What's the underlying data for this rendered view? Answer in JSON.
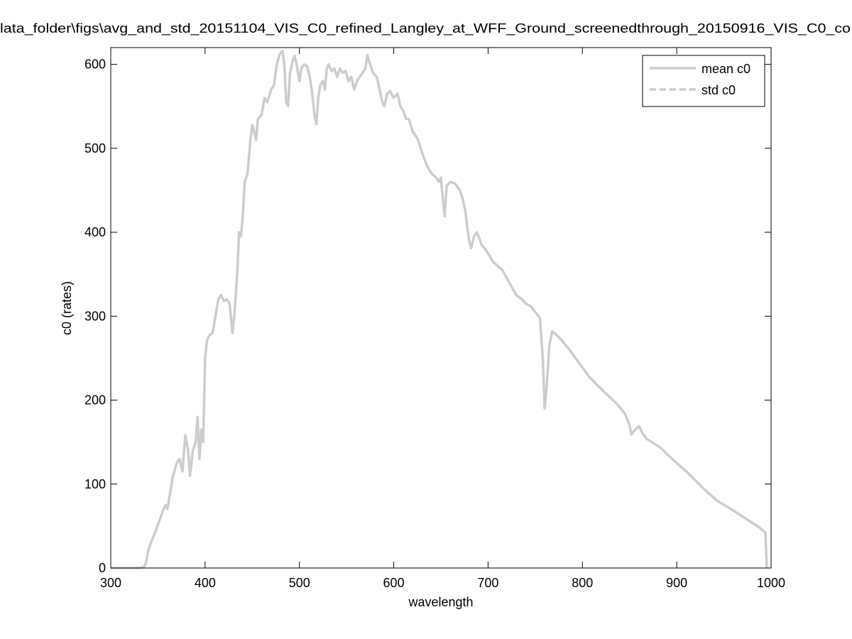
{
  "chart_data": {
    "type": "line",
    "title": "lata_folder\\figs\\avg_and_std_20151104_VIS_C0_refined_Langley_at_WFF_Ground_screenedthrough_20150916_VIS_C0_co",
    "x_label": "wavelength",
    "y_label": "c0 (rates)",
    "xlim": [
      300,
      1000
    ],
    "ylim": [
      0,
      620
    ],
    "xticks": [
      300,
      400,
      500,
      600,
      700,
      800,
      900,
      1000
    ],
    "yticks": [
      0,
      100,
      200,
      300,
      400,
      500,
      600
    ],
    "grid": false,
    "legend": "top-right",
    "x": [
      300,
      330,
      335,
      337,
      340,
      344,
      348,
      352,
      356,
      358,
      360,
      363,
      366,
      370,
      373,
      376,
      379,
      382,
      384,
      387,
      390,
      392,
      394,
      396,
      398,
      400,
      402,
      405,
      408,
      411,
      414,
      417,
      420,
      423,
      426,
      429,
      431,
      434,
      436,
      438,
      440,
      442,
      445,
      448,
      450,
      452,
      454,
      456,
      460,
      463,
      466,
      470,
      473,
      476,
      479,
      482,
      484,
      486,
      488,
      490,
      493,
      495,
      497,
      500,
      502,
      505,
      508,
      511,
      513,
      516,
      518,
      520,
      522,
      525,
      527,
      529,
      531,
      534,
      537,
      540,
      543,
      546,
      549,
      552,
      555,
      558,
      561,
      564,
      567,
      570,
      572,
      575,
      578,
      582,
      585,
      588,
      590,
      593,
      596,
      600,
      604,
      607,
      610,
      613,
      616,
      620,
      625,
      630,
      635,
      640,
      645,
      648,
      650,
      652,
      654,
      656,
      660,
      665,
      670,
      673,
      676,
      678,
      680,
      682,
      685,
      688,
      690,
      693,
      697,
      700,
      705,
      710,
      715,
      720,
      725,
      730,
      735,
      740,
      745,
      750,
      755,
      758,
      760,
      762,
      765,
      768,
      775,
      785,
      796,
      807,
      822,
      837,
      845,
      850,
      852,
      856,
      860,
      864,
      868,
      882,
      898,
      913,
      928,
      943,
      958,
      973,
      988,
      994,
      995.5
    ],
    "series": [
      {
        "name": "mean c0",
        "color": "#cccccc",
        "dash": "solid",
        "values": [
          0,
          0,
          1,
          5,
          22,
          34,
          45,
          58,
          70,
          75,
          70,
          90,
          110,
          125,
          130,
          115,
          158,
          140,
          110,
          140,
          150,
          180,
          130,
          165,
          150,
          250,
          271,
          278,
          280,
          300,
          320,
          325,
          318,
          320,
          315,
          280,
          300,
          350,
          400,
          395,
          420,
          460,
          470,
          510,
          528,
          520,
          510,
          535,
          540,
          560,
          555,
          570,
          575,
          600,
          612,
          616,
          600,
          555,
          550,
          590,
          605,
          610,
          600,
          580,
          595,
          600,
          598,
          585,
          570,
          540,
          529,
          560,
          575,
          580,
          570,
          595,
          600,
          592,
          595,
          585,
          595,
          590,
          592,
          580,
          585,
          570,
          580,
          585,
          590,
          595,
          611,
          600,
          590,
          585,
          570,
          555,
          550,
          565,
          568,
          560,
          565,
          550,
          545,
          535,
          535,
          520,
          512,
          495,
          480,
          470,
          465,
          460,
          465,
          440,
          419,
          455,
          460,
          458,
          450,
          440,
          425,
          405,
          390,
          381,
          395,
          400,
          395,
          385,
          380,
          375,
          365,
          360,
          355,
          345,
          335,
          325,
          321,
          315,
          312,
          305,
          298,
          250,
          190,
          215,
          265,
          282,
          275,
          262,
          245,
          228,
          211,
          195,
          184,
          170,
          159,
          165,
          169,
          160,
          154,
          144,
          127,
          112,
          95,
          80,
          70,
          59,
          48,
          42,
          0
        ]
      },
      {
        "name": "std c0",
        "color": "#cccccc",
        "dash": "dashed",
        "values": [
          null,
          null,
          null,
          null,
          null,
          null,
          null,
          null,
          null,
          null,
          null,
          null,
          null,
          null,
          null,
          null,
          null,
          null,
          null,
          null,
          null,
          null,
          null,
          null,
          null,
          null,
          null,
          null,
          null,
          null,
          null,
          null,
          null,
          null,
          null,
          null,
          null,
          null,
          null,
          null,
          null,
          null,
          null,
          null,
          null,
          null,
          null,
          null,
          null,
          null,
          null,
          null,
          null,
          null,
          null,
          null,
          null,
          null,
          null,
          null,
          null,
          null,
          null,
          null,
          null,
          null,
          null,
          null,
          null,
          null,
          null,
          null,
          null,
          null,
          null,
          null,
          null,
          null,
          null,
          null,
          null,
          null,
          null,
          null,
          null,
          null,
          null,
          null,
          null,
          null,
          null,
          null,
          null,
          null,
          null,
          null,
          null,
          null,
          null,
          null,
          null,
          null,
          null,
          null,
          null,
          null,
          null,
          null,
          null,
          null,
          null,
          null,
          null,
          null,
          null,
          null,
          null,
          null,
          null,
          null,
          null,
          null,
          null,
          null,
          null,
          null,
          null,
          null,
          null,
          null,
          null,
          null,
          null,
          null,
          null,
          null,
          null,
          null,
          null,
          null,
          null,
          null,
          null,
          null,
          null,
          null,
          null,
          null,
          null,
          null,
          null,
          null,
          null,
          null,
          null,
          null,
          null,
          null,
          null,
          null,
          null,
          null,
          null,
          null,
          null,
          null,
          null,
          null,
          null
        ]
      }
    ]
  }
}
